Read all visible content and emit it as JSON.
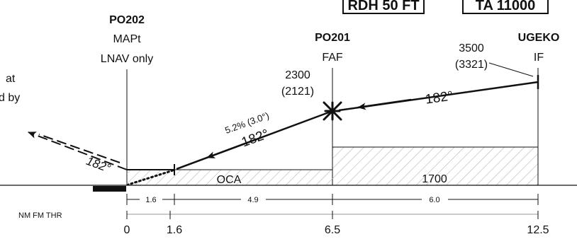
{
  "boxes": {
    "rdh": "RDH 50 FT",
    "ta": "TA 11000"
  },
  "fixes": {
    "po202": {
      "name": "PO202",
      "role": "MAPt",
      "note": "LNAV only"
    },
    "po201": {
      "name": "PO201",
      "role": "FAF",
      "altitude": "2300",
      "height": "(2121)"
    },
    "ugeko": {
      "name": "UGEKO",
      "role": "IF",
      "altitude": "3500",
      "height": "(3321)"
    }
  },
  "missed_approach_note": {
    "line1": "at",
    "line2": "d by"
  },
  "tracks": {
    "final": "182°",
    "initial": "182°",
    "missed": "182°",
    "gradient": "5.2% (3.0°)"
  },
  "minimums": {
    "oca": "OCA",
    "sector_altitude": "1700"
  },
  "distances": {
    "segments": [
      "1.6",
      "4.9",
      "6.0"
    ],
    "scale_label": "NM FM THR",
    "ticks": [
      "0",
      "1.6",
      "6.5",
      "12.5"
    ]
  },
  "colors": {
    "ink": "#111111",
    "hatch": "#b5b5b5"
  }
}
